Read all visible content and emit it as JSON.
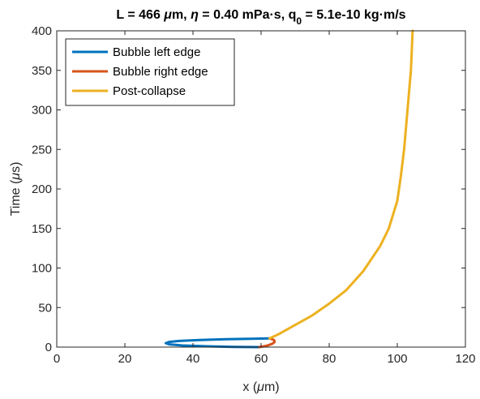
{
  "chart_data": {
    "type": "line",
    "title_segments": [
      {
        "text": "L = 466 ",
        "style": "normal"
      },
      {
        "text": "μ",
        "style": "italic"
      },
      {
        "text": "m, ",
        "style": "normal"
      },
      {
        "text": "η",
        "style": "italic"
      },
      {
        "text": " = 0.40 mPa·s, q",
        "style": "normal"
      },
      {
        "text": "0",
        "style": "sub"
      },
      {
        "text": " = 5.1e-10 kg·m/s",
        "style": "normal"
      }
    ],
    "xlabel_segments": [
      {
        "text": "x (",
        "style": "normal"
      },
      {
        "text": "μ",
        "style": "italic"
      },
      {
        "text": "m)",
        "style": "normal"
      }
    ],
    "ylabel_segments": [
      {
        "text": "Time (",
        "style": "normal"
      },
      {
        "text": "μ",
        "style": "italic"
      },
      {
        "text": "s)",
        "style": "normal"
      }
    ],
    "xlim": [
      0,
      120
    ],
    "ylim": [
      0,
      400
    ],
    "xticks": [
      0,
      20,
      40,
      60,
      80,
      100,
      120
    ],
    "yticks": [
      0,
      50,
      100,
      150,
      200,
      250,
      300,
      350,
      400
    ],
    "grid": false,
    "legend_position": "top-left",
    "series": [
      {
        "name": "Bubble left edge",
        "color": "#0072BD",
        "x": [
          59.5,
          52,
          44,
          37,
          33,
          32,
          33,
          36,
          42,
          50,
          57,
          62.5
        ],
        "y": [
          0,
          0.3,
          1,
          2,
          3.5,
          5,
          6.5,
          7.8,
          9,
          10,
          10.5,
          11
        ]
      },
      {
        "name": "Bubble right edge",
        "color": "#D95319",
        "x": [
          59.5,
          61.5,
          63.2,
          64,
          63.8,
          62.5
        ],
        "y": [
          0,
          1.5,
          4,
          6.5,
          9,
          11
        ]
      },
      {
        "name": "Post-collapse",
        "color": "#EDB120",
        "x": [
          62.5,
          65,
          70,
          75,
          80,
          85,
          90,
          95,
          97.5,
          100,
          101,
          102,
          103,
          104,
          104.5
        ],
        "y": [
          11,
          16,
          28,
          40,
          55,
          72,
          96,
          128,
          150,
          185,
          215,
          250,
          300,
          350,
          400
        ]
      }
    ]
  }
}
